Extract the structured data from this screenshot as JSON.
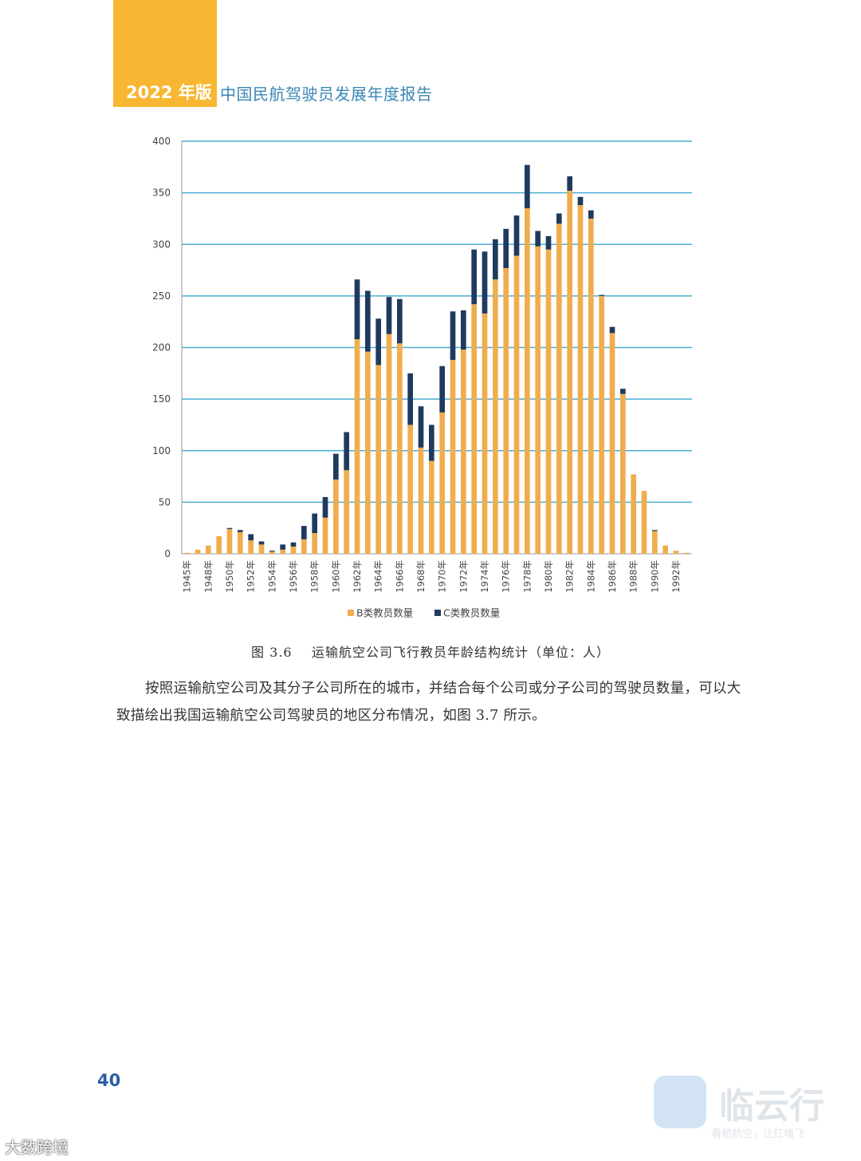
{
  "header": {
    "year_label": "2022 年版",
    "report_title": "中国民航驾驶员发展年度报告"
  },
  "colors": {
    "accent_tab": "#f7b733",
    "series_b": "#f0ad4e",
    "series_c": "#1f3a5f",
    "gridline": "#4aaed3"
  },
  "chart_data": {
    "type": "bar",
    "stacked": true,
    "categories": [
      "1945年",
      "1947年",
      "1948年",
      "1949年",
      "1950年",
      "1951年",
      "1952年",
      "1953年",
      "1954年",
      "1955年",
      "1956年",
      "1957年",
      "1958年",
      "1959年",
      "1960年",
      "1961年",
      "1962年",
      "1963年",
      "1964年",
      "1965年",
      "1966年",
      "1967年",
      "1968年",
      "1969年",
      "1970年",
      "1971年",
      "1972年",
      "1973年",
      "1974年",
      "1975年",
      "1976年",
      "1977年",
      "1978年",
      "1979年",
      "1980年",
      "1981年",
      "1982年",
      "1983年",
      "1984年",
      "1985年",
      "1986年",
      "1987年",
      "1988年",
      "1989年",
      "1990年",
      "1991年",
      "1992年",
      "1993年"
    ],
    "tick_labels": [
      "1945年",
      "1948年",
      "1950年",
      "1952年",
      "1954年",
      "1956年",
      "1958年",
      "1960年",
      "1962年",
      "1964年",
      "1966年",
      "1968年",
      "1970年",
      "1972年",
      "1974年",
      "1976年",
      "1978年",
      "1980年",
      "1982年",
      "1984年",
      "1986年",
      "1988年",
      "1990年",
      "1992年"
    ],
    "series": [
      {
        "name": "B类教员数量",
        "values": [
          1,
          4,
          8,
          17,
          24,
          21,
          13,
          9,
          2,
          4,
          7,
          14,
          20,
          35,
          72,
          81,
          208,
          196,
          183,
          213,
          204,
          125,
          103,
          90,
          137,
          188,
          198,
          242,
          233,
          266,
          277,
          289,
          335,
          298,
          295,
          320,
          352,
          338,
          325,
          250,
          214,
          155,
          77,
          61,
          22,
          8,
          3,
          1
        ]
      },
      {
        "name": "C类教员数量",
        "values": [
          0,
          0,
          0,
          0,
          1,
          2,
          6,
          3,
          1,
          5,
          4,
          13,
          19,
          20,
          25,
          37,
          58,
          59,
          45,
          36,
          43,
          50,
          40,
          35,
          45,
          47,
          38,
          53,
          60,
          39,
          38,
          39,
          42,
          15,
          13,
          10,
          14,
          8,
          8,
          1,
          6,
          5,
          0,
          0,
          1,
          0,
          0,
          0
        ]
      }
    ],
    "ylim": [
      0,
      400
    ],
    "yticks": [
      0,
      50,
      100,
      150,
      200,
      250,
      300,
      350,
      400
    ],
    "grid": true,
    "legend_position": "bottom-center"
  },
  "caption": {
    "figure_number": "图 3.6",
    "figure_title": "运输航空公司飞行教员年龄结构统计（单位：人）"
  },
  "body_text": "按照运输航空公司及其分子公司所在的城市，并结合每个公司或分子公司的驾驶员数量，可以大致描绘出我国运输航空公司驾驶员的地区分布情况，如图 3.7 所示。",
  "page_number": "40",
  "watermarks": {
    "right_logo_text": "临云行",
    "right_sub_text": "看航航空，让红墙飞",
    "left_text": "大数跨境"
  }
}
